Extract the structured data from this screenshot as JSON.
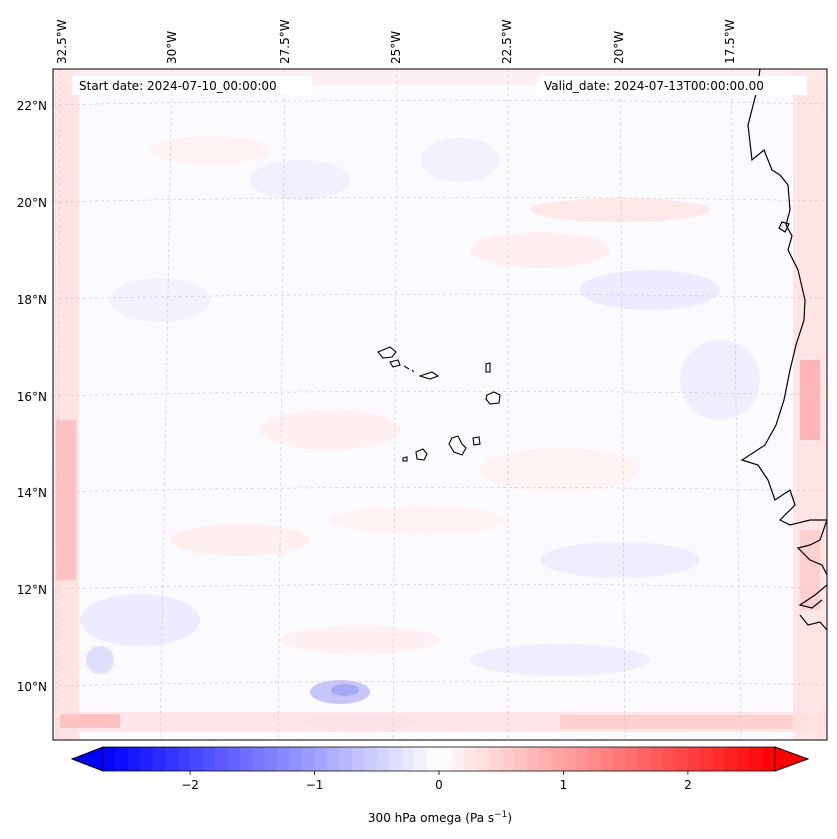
{
  "map": {
    "start_label": "Start date: 2024-07-10_00:00:00",
    "valid_label": "Valid_date: 2024-07-13T00:00:00.00"
  },
  "top_ticks": [
    {
      "label": "32.5°W"
    },
    {
      "label": "30°W"
    },
    {
      "label": "27.5°W"
    },
    {
      "label": "25°W"
    },
    {
      "label": "22.5°W"
    },
    {
      "label": "20°W"
    },
    {
      "label": "17.5°W"
    }
  ],
  "left_ticks": [
    {
      "label": "22°N"
    },
    {
      "label": "20°N"
    },
    {
      "label": "18°N"
    },
    {
      "label": "16°N"
    },
    {
      "label": "14°N"
    },
    {
      "label": "12°N"
    },
    {
      "label": "10°N"
    }
  ],
  "colorbar": {
    "label": "300 hPa omega (Pa s",
    "label_sup": "−1",
    "label_close": ")",
    "min": -2.7,
    "max": 2.7,
    "low_color": "#0000ff",
    "mid_color": "#ffffff",
    "high_color": "#ff0000",
    "ticks": [
      {
        "value": -2,
        "label": "−2"
      },
      {
        "value": -1,
        "label": "−1"
      },
      {
        "value": 0,
        "label": "0"
      },
      {
        "value": 1,
        "label": "1"
      },
      {
        "value": 2,
        "label": "2"
      }
    ]
  }
}
